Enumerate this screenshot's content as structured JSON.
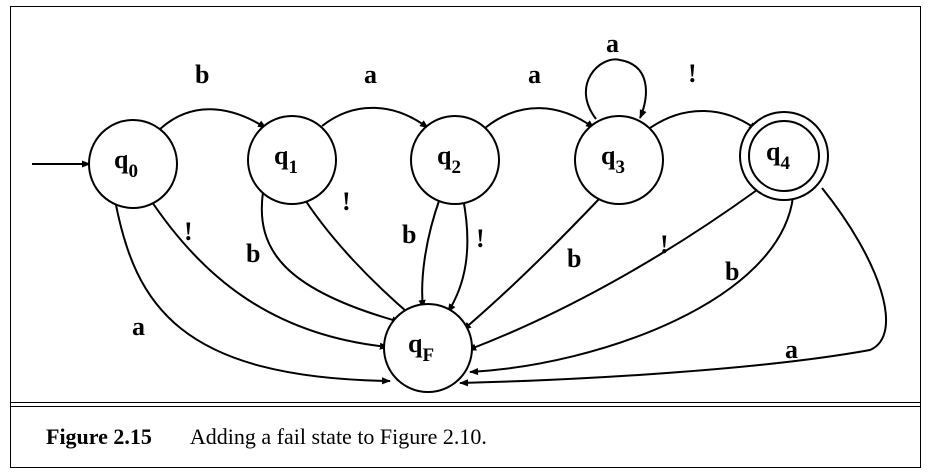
{
  "states": {
    "q0": {
      "base": "q",
      "sub": "0"
    },
    "q1": {
      "base": "q",
      "sub": "1"
    },
    "q2": {
      "base": "q",
      "sub": "2"
    },
    "q3": {
      "base": "q",
      "sub": "3"
    },
    "q4": {
      "base": "q",
      "sub": "4"
    },
    "qF": {
      "base": "q",
      "sub": "F"
    }
  },
  "edge_labels": {
    "q0_q1": "b",
    "q1_q2": "a",
    "q2_q3": "a",
    "q3_loop": "a",
    "q3_q4": "!",
    "q0_qF_bang": "!",
    "q0_qF_a": "a",
    "q1_qF_b": "b",
    "q1_qF_bang": "!",
    "q2_qF_b": "b",
    "q2_qF_bang": "!",
    "q3_qF_b": "b",
    "q4_qF_bang": "!",
    "q4_qF_b": "b",
    "q4_qF_a": "a"
  },
  "caption": {
    "label": "Figure 2.15",
    "text": "Adding a fail state to Figure 2.10."
  }
}
